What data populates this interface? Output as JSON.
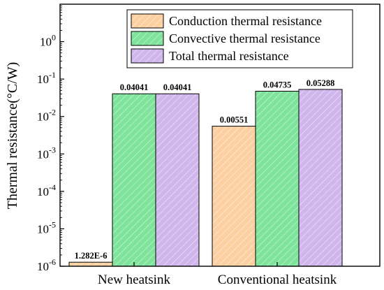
{
  "chart_data": {
    "type": "bar",
    "y_scale": "log",
    "ylabel": "Thermal resistance(°C/W)",
    "ylim": [
      1e-06,
      10
    ],
    "y_ticks": [
      {
        "value": 1e-06,
        "base": "10",
        "exp": "-6"
      },
      {
        "value": 1e-05,
        "base": "10",
        "exp": "-5"
      },
      {
        "value": 0.0001,
        "base": "10",
        "exp": "-4"
      },
      {
        "value": 0.001,
        "base": "10",
        "exp": "-3"
      },
      {
        "value": 0.01,
        "base": "10",
        "exp": "-2"
      },
      {
        "value": 0.1,
        "base": "10",
        "exp": "-1"
      },
      {
        "value": 1,
        "base": "10",
        "exp": "0"
      }
    ],
    "categories": [
      "New heatsink",
      "Conventional heatsink"
    ],
    "series": [
      {
        "name": "Conduction thermal resistance",
        "color": "#fdd0a2",
        "values": [
          1.282e-06,
          0.00551
        ],
        "labels": [
          "1.282E-6",
          "0.00551"
        ]
      },
      {
        "name": "Convective thermal resistance",
        "color": "#7ee39b",
        "values": [
          0.04041,
          0.04735
        ],
        "labels": [
          "0.04041",
          "0.04735"
        ]
      },
      {
        "name": "Total thermal resistance",
        "color": "#cfb6ec",
        "values": [
          0.04041,
          0.05288
        ],
        "labels": [
          "0.04041",
          "0.05288"
        ]
      }
    ],
    "legend_position": "top-right",
    "bar_pattern": "diagonal-hatch",
    "grid": false
  }
}
